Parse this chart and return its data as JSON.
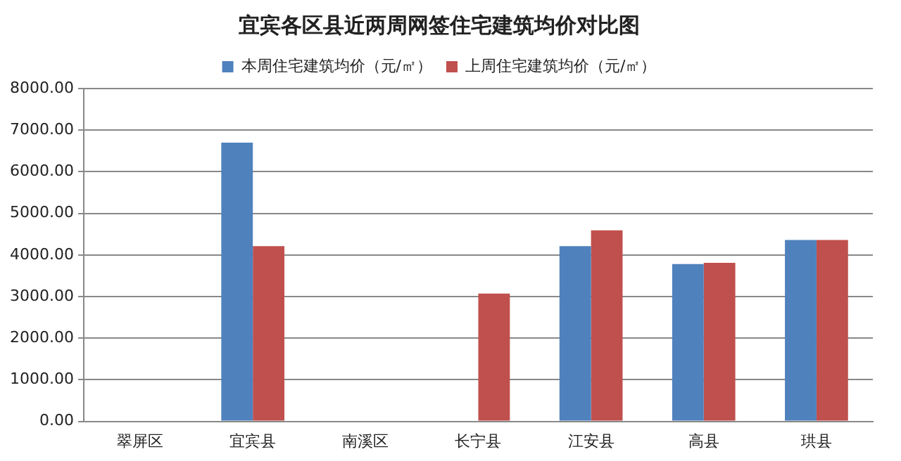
{
  "chart_data": {
    "type": "bar",
    "title": "宜宾各区县近两周网签住宅建筑均价对比图",
    "categories": [
      "翠屏区",
      "宜宾县",
      "南溪区",
      "长宁县",
      "江安县",
      "高县",
      "珙县"
    ],
    "series": [
      {
        "name": "本周住宅建筑均价（元/㎡）",
        "color": "#4f81bd",
        "values": [
          null,
          6700,
          null,
          null,
          4210,
          3780,
          4360
        ]
      },
      {
        "name": "上周住宅建筑均价（元/㎡）",
        "color": "#c0504d",
        "values": [
          null,
          4210,
          null,
          3070,
          4590,
          3810,
          4360
        ]
      }
    ],
    "ylim": [
      0,
      8000
    ],
    "yticks": [
      {
        "value": 0,
        "label": "0.00"
      },
      {
        "value": 1000,
        "label": "1000.00"
      },
      {
        "value": 2000,
        "label": "2000.00"
      },
      {
        "value": 3000,
        "label": "3000.00"
      },
      {
        "value": 4000,
        "label": "4000.00"
      },
      {
        "value": 5000,
        "label": "5000.00"
      },
      {
        "value": 6000,
        "label": "6000.00"
      },
      {
        "value": 7000,
        "label": "7000.00"
      },
      {
        "value": 8000,
        "label": "8000.00"
      }
    ],
    "grid": "y",
    "legend": "top"
  }
}
